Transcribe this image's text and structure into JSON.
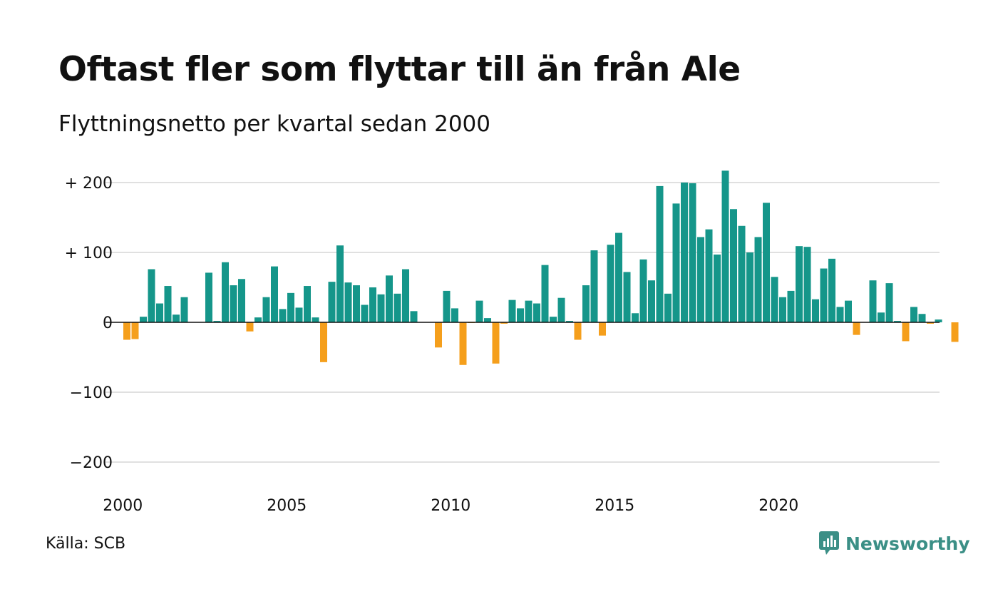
{
  "header": {
    "title": "Oftast fler som flyttar till än från Ale",
    "subtitle": "Flyttningsnetto per kvartal sedan 2000"
  },
  "footer": {
    "source": "Källa: SCB",
    "brand": "Newsworthy",
    "brand_icon": "newsworthy-logo-icon"
  },
  "colors": {
    "positive": "#15968a",
    "negative": "#f59f1c",
    "grid": "#e0e0e0",
    "zero_line": "#111111",
    "brand": "#3b8f86"
  },
  "chart_data": {
    "type": "bar",
    "title": "Oftast fler som flyttar till än från Ale",
    "subtitle": "Flyttningsnetto per kvartal sedan 2000",
    "xlabel": "",
    "ylabel": "",
    "x_start_year": 2000,
    "periods_per_year": 4,
    "ylim": [
      -225,
      225
    ],
    "yticks": [
      {
        "value": 200,
        "label": "+ 200"
      },
      {
        "value": 100,
        "label": "+ 100"
      },
      {
        "value": 0,
        "label": "0"
      },
      {
        "value": -100,
        "label": "−100"
      },
      {
        "value": -200,
        "label": "−200"
      }
    ],
    "xticks": [
      {
        "year": 2000,
        "label": "2000"
      },
      {
        "year": 2005,
        "label": "2005"
      },
      {
        "year": 2010,
        "label": "2010"
      },
      {
        "year": 2015,
        "label": "2015"
      },
      {
        "year": 2020,
        "label": "2020"
      }
    ],
    "grid": true,
    "legend": "none",
    "values": [
      -25,
      -24,
      8,
      76,
      27,
      52,
      11,
      36,
      0,
      0,
      71,
      2,
      86,
      53,
      62,
      -13,
      7,
      36,
      80,
      19,
      42,
      21,
      52,
      7,
      -57,
      58,
      110,
      57,
      53,
      25,
      50,
      40,
      67,
      41,
      76,
      16,
      0,
      0,
      -36,
      45,
      20,
      -61,
      -1,
      31,
      6,
      -59,
      -2,
      32,
      20,
      31,
      27,
      82,
      8,
      35,
      2,
      -25,
      53,
      103,
      -19,
      111,
      128,
      72,
      13,
      90,
      60,
      195,
      41,
      170,
      200,
      199,
      122,
      133,
      97,
      217,
      162,
      138,
      100,
      122,
      171,
      65,
      36,
      45,
      109,
      108,
      33,
      77,
      91,
      22,
      31,
      -18,
      0,
      60,
      14,
      56,
      2,
      -27,
      22,
      12,
      -2,
      4,
      0,
      -28
    ]
  }
}
